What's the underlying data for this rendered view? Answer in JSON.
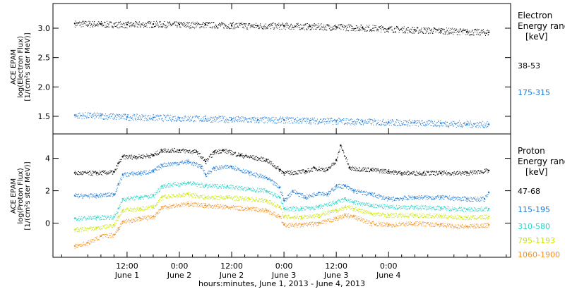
{
  "chart_data": [
    {
      "type": "scatter",
      "ylabel": [
        "ACE EPAM",
        "log(Electron Flux)",
        "[1/(cm²s ster MeV)]"
      ],
      "yticks": [
        "1.5",
        "2.0",
        "2.5",
        "3.0"
      ],
      "ylim": [
        1.2,
        3.42
      ],
      "legend_title": [
        "Electron",
        "Energy ranges",
        "[keV]"
      ],
      "series": [
        {
          "name": "38-53",
          "color": "#000000",
          "points": [
            [
              0,
              3.08
            ],
            [
              6,
              3.07
            ],
            [
              12,
              3.06
            ],
            [
              18,
              3.07
            ],
            [
              24,
              3.06
            ],
            [
              30,
              3.06
            ],
            [
              36,
              3.05
            ],
            [
              42,
              3.04
            ],
            [
              48,
              3.04
            ],
            [
              54,
              3.03
            ],
            [
              60,
              3.02
            ],
            [
              66,
              3.01
            ],
            [
              72,
              2.99
            ],
            [
              78,
              2.97
            ],
            [
              84,
              2.96
            ],
            [
              90,
              2.94
            ],
            [
              95,
              2.93
            ]
          ]
        },
        {
          "name": "175-315",
          "color": "#1a78d6",
          "points": [
            [
              0,
              1.52
            ],
            [
              6,
              1.51
            ],
            [
              12,
              1.49
            ],
            [
              18,
              1.48
            ],
            [
              24,
              1.47
            ],
            [
              30,
              1.46
            ],
            [
              36,
              1.45
            ],
            [
              42,
              1.44
            ],
            [
              48,
              1.44
            ],
            [
              54,
              1.43
            ],
            [
              60,
              1.42
            ],
            [
              66,
              1.41
            ],
            [
              72,
              1.4
            ],
            [
              78,
              1.39
            ],
            [
              84,
              1.38
            ],
            [
              90,
              1.37
            ],
            [
              95,
              1.36
            ]
          ]
        }
      ]
    },
    {
      "type": "scatter",
      "ylabel": [
        "ACE EPAM",
        "log(Proton Flux)",
        "[1/(cm²s ster MeV)]"
      ],
      "yticks": [
        "0",
        "2",
        "4"
      ],
      "ylim": [
        -2.1,
        5.5
      ],
      "legend_title": [
        "Proton",
        "Energy ranges",
        "[keV]"
      ],
      "series": [
        {
          "name": "47-68",
          "color": "#000000",
          "points": [
            [
              0,
              3.1
            ],
            [
              5,
              3.1
            ],
            [
              9,
              3.15
            ],
            [
              10,
              3.7
            ],
            [
              11,
              4.1
            ],
            [
              14,
              4.1
            ],
            [
              18,
              4.2
            ],
            [
              20,
              4.5
            ],
            [
              24,
              4.5
            ],
            [
              28,
              4.4
            ],
            [
              30,
              3.8
            ],
            [
              32,
              4.4
            ],
            [
              34,
              4.5
            ],
            [
              38,
              4.2
            ],
            [
              44,
              3.9
            ],
            [
              47,
              3.3
            ],
            [
              48,
              3.1
            ],
            [
              53,
              3.2
            ],
            [
              55,
              3.4
            ],
            [
              58,
              3.3
            ],
            [
              60,
              3.9
            ],
            [
              61,
              4.8
            ],
            [
              63,
              3.4
            ],
            [
              68,
              3.3
            ],
            [
              72,
              3.2
            ],
            [
              75,
              3.1
            ],
            [
              80,
              3.1
            ],
            [
              84,
              3.1
            ],
            [
              90,
              3.1
            ],
            [
              95,
              3.25
            ]
          ]
        },
        {
          "name": "115-195",
          "color": "#1a78d6",
          "points": [
            [
              0,
              1.7
            ],
            [
              5,
              1.7
            ],
            [
              9,
              1.8
            ],
            [
              10,
              2.4
            ],
            [
              11,
              3.0
            ],
            [
              15,
              3.1
            ],
            [
              18,
              3.2
            ],
            [
              20,
              3.6
            ],
            [
              26,
              3.8
            ],
            [
              29,
              3.5
            ],
            [
              30,
              3.0
            ],
            [
              32,
              3.4
            ],
            [
              36,
              3.5
            ],
            [
              40,
              3.1
            ],
            [
              44,
              2.8
            ],
            [
              47,
              2.2
            ],
            [
              48,
              1.4
            ],
            [
              50,
              2.0
            ],
            [
              53,
              1.6
            ],
            [
              56,
              1.9
            ],
            [
              58,
              1.8
            ],
            [
              60,
              2.3
            ],
            [
              62,
              2.3
            ],
            [
              64,
              2.0
            ],
            [
              68,
              1.8
            ],
            [
              72,
              1.5
            ],
            [
              78,
              1.6
            ],
            [
              84,
              1.6
            ],
            [
              90,
              1.5
            ],
            [
              94,
              1.5
            ],
            [
              95,
              1.9
            ]
          ]
        },
        {
          "name": "310-580",
          "color": "#20d3c6",
          "points": [
            [
              0,
              0.3
            ],
            [
              5,
              0.35
            ],
            [
              9,
              0.4
            ],
            [
              10,
              0.9
            ],
            [
              11,
              1.5
            ],
            [
              15,
              1.6
            ],
            [
              18,
              1.7
            ],
            [
              20,
              2.3
            ],
            [
              26,
              2.5
            ],
            [
              30,
              2.3
            ],
            [
              35,
              2.3
            ],
            [
              40,
              2.1
            ],
            [
              44,
              2.0
            ],
            [
              47,
              1.6
            ],
            [
              48,
              0.9
            ],
            [
              52,
              0.9
            ],
            [
              56,
              1.0
            ],
            [
              60,
              1.3
            ],
            [
              62,
              1.5
            ],
            [
              64,
              1.3
            ],
            [
              68,
              1.1
            ],
            [
              72,
              1.0
            ],
            [
              78,
              1.0
            ],
            [
              84,
              0.95
            ],
            [
              90,
              0.85
            ],
            [
              95,
              0.9
            ]
          ]
        },
        {
          "name": "795-1193",
          "color": "#c8e600",
          "points": [
            [
              0,
              -0.4
            ],
            [
              5,
              -0.3
            ],
            [
              9,
              -0.1
            ],
            [
              10,
              0.4
            ],
            [
              11,
              0.8
            ],
            [
              15,
              0.9
            ],
            [
              18,
              1.0
            ],
            [
              20,
              1.6
            ],
            [
              26,
              1.8
            ],
            [
              30,
              1.6
            ],
            [
              35,
              1.6
            ],
            [
              40,
              1.5
            ],
            [
              44,
              1.4
            ],
            [
              47,
              1.0
            ],
            [
              48,
              0.4
            ],
            [
              52,
              0.4
            ],
            [
              56,
              0.5
            ],
            [
              60,
              0.8
            ],
            [
              62,
              1.0
            ],
            [
              64,
              0.9
            ],
            [
              68,
              0.6
            ],
            [
              72,
              0.5
            ],
            [
              78,
              0.5
            ],
            [
              84,
              0.45
            ],
            [
              90,
              0.35
            ],
            [
              95,
              0.4
            ]
          ]
        },
        {
          "name": "1060-1900",
          "color": "#f5901e",
          "points": [
            [
              0,
              -1.4
            ],
            [
              3,
              -1.2
            ],
            [
              6,
              -0.8
            ],
            [
              9,
              -0.7
            ],
            [
              10,
              -0.3
            ],
            [
              11,
              0.1
            ],
            [
              15,
              0.3
            ],
            [
              18,
              0.4
            ],
            [
              20,
              1.0
            ],
            [
              26,
              1.2
            ],
            [
              30,
              1.1
            ],
            [
              35,
              1.0
            ],
            [
              40,
              0.9
            ],
            [
              44,
              0.8
            ],
            [
              47,
              0.4
            ],
            [
              48,
              -0.1
            ],
            [
              52,
              -0.1
            ],
            [
              56,
              0.0
            ],
            [
              60,
              0.3
            ],
            [
              62,
              0.5
            ],
            [
              64,
              0.4
            ],
            [
              68,
              0.0
            ],
            [
              72,
              -0.1
            ],
            [
              78,
              0.0
            ],
            [
              84,
              -0.1
            ],
            [
              90,
              -0.2
            ],
            [
              95,
              -0.1
            ]
          ]
        }
      ]
    }
  ],
  "xaxis": {
    "ticks": [
      {
        "time": "12:00",
        "day": "June 1"
      },
      {
        "time": "0:00",
        "day": "June 2"
      },
      {
        "time": "12:00",
        "day": "June 2"
      },
      {
        "time": "0:00",
        "day": "June 3"
      },
      {
        "time": "12:00",
        "day": "June 3"
      },
      {
        "time": "0:00",
        "day": "June 4"
      }
    ],
    "label": "hours:minutes, June  1, 2013 - June  4, 2013"
  }
}
